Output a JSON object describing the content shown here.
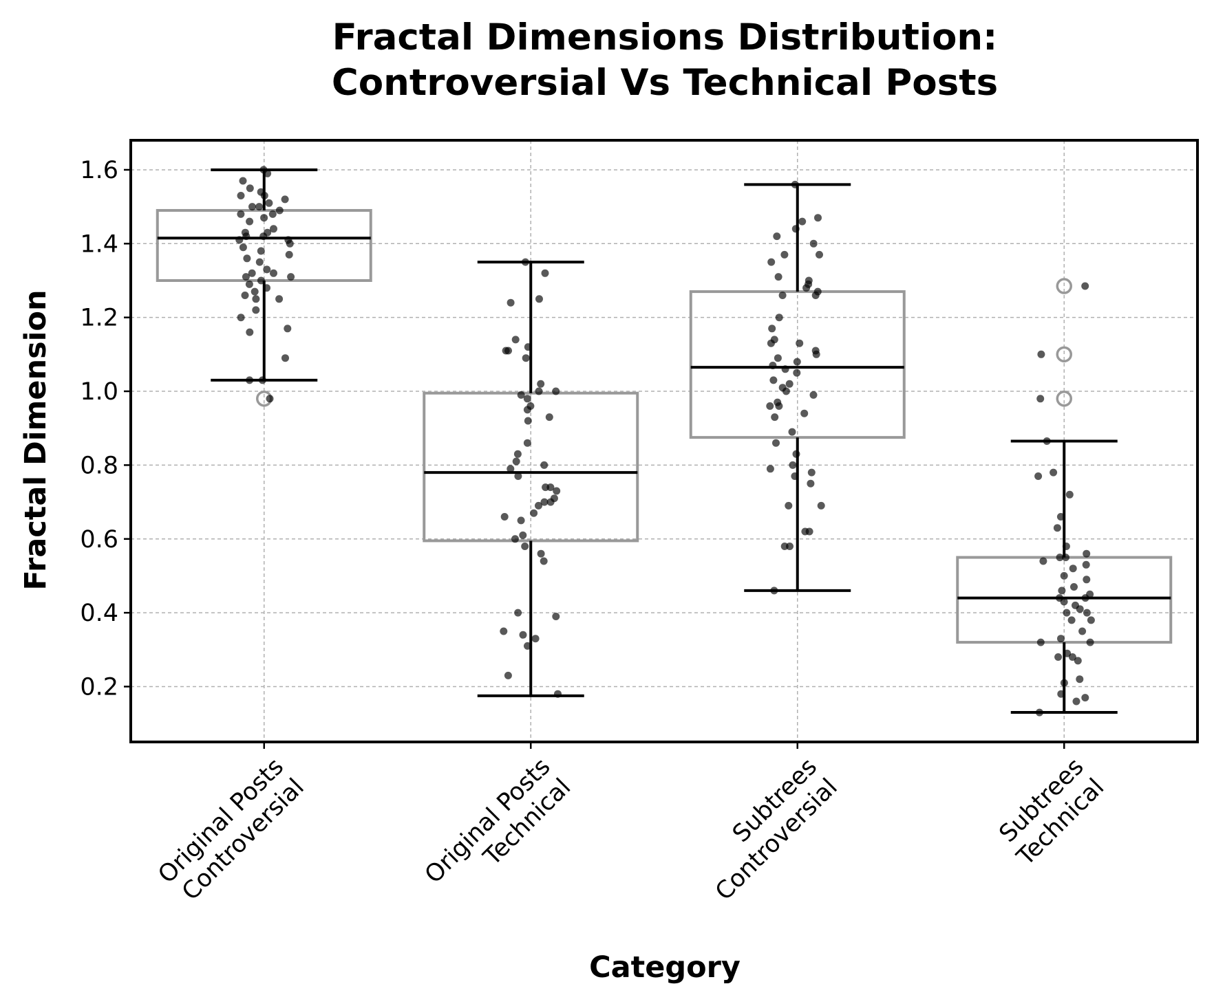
{
  "chart_data": {
    "type": "box",
    "title_lines": [
      "Fractal Dimensions Distribution:",
      "Controversial Vs Technical Posts"
    ],
    "xlabel": "Category",
    "ylabel": "Fractal Dimension",
    "ylim": [
      0.05,
      1.68
    ],
    "yticks": [
      0.2,
      0.4,
      0.6,
      0.8,
      1.0,
      1.2,
      1.4,
      1.6
    ],
    "ytick_labels": [
      "0.2",
      "0.4",
      "0.6",
      "0.8",
      "1.0",
      "1.2",
      "1.4",
      "1.6"
    ],
    "grid": true,
    "categories": [
      [
        "Original Posts",
        "Controversial"
      ],
      [
        "Original Posts",
        "Technical"
      ],
      [
        "Subtrees",
        "Controversial"
      ],
      [
        "Subtrees",
        "Technical"
      ]
    ],
    "colors": {
      "box_edge": "#999999",
      "median": "#000000",
      "whisker": "#000000",
      "points": "#000000",
      "outlier_edge": "#999999",
      "grid": "#b0b0b0"
    },
    "boxes": [
      {
        "q1": 1.3,
        "median": 1.415,
        "q3": 1.49,
        "whisker_low": 1.03,
        "whisker_high": 1.6,
        "outliers": [
          0.98
        ]
      },
      {
        "q1": 0.595,
        "median": 0.78,
        "q3": 0.995,
        "whisker_low": 0.175,
        "whisker_high": 1.35,
        "outliers": []
      },
      {
        "q1": 0.875,
        "median": 1.065,
        "q3": 1.27,
        "whisker_low": 0.46,
        "whisker_high": 1.56,
        "outliers": []
      },
      {
        "q1": 0.32,
        "median": 0.44,
        "q3": 0.55,
        "whisker_low": 0.13,
        "whisker_high": 0.865,
        "outliers": [
          1.285,
          1.1,
          0.98
        ]
      }
    ],
    "points": [
      [
        1.6,
        1.59,
        1.57,
        1.55,
        1.54,
        1.53,
        1.53,
        1.52,
        1.51,
        1.5,
        1.5,
        1.49,
        1.48,
        1.48,
        1.47,
        1.46,
        1.44,
        1.43,
        1.43,
        1.42,
        1.42,
        1.41,
        1.41,
        1.4,
        1.39,
        1.38,
        1.37,
        1.36,
        1.35,
        1.33,
        1.32,
        1.32,
        1.31,
        1.31,
        1.3,
        1.29,
        1.28,
        1.27,
        1.26,
        1.25,
        1.25,
        1.22,
        1.2,
        1.17,
        1.16,
        1.09,
        1.03,
        1.03,
        0.98
      ],
      [
        1.35,
        1.32,
        1.25,
        1.24,
        1.14,
        1.12,
        1.11,
        1.11,
        1.09,
        1.02,
        1.0,
        1.0,
        0.99,
        0.98,
        0.96,
        0.95,
        0.93,
        0.92,
        0.86,
        0.83,
        0.81,
        0.8,
        0.79,
        0.77,
        0.74,
        0.74,
        0.73,
        0.71,
        0.7,
        0.7,
        0.69,
        0.67,
        0.66,
        0.65,
        0.61,
        0.6,
        0.58,
        0.56,
        0.54,
        0.4,
        0.39,
        0.35,
        0.34,
        0.33,
        0.31,
        0.23,
        0.18
      ],
      [
        1.56,
        1.47,
        1.46,
        1.44,
        1.42,
        1.4,
        1.37,
        1.37,
        1.35,
        1.31,
        1.3,
        1.29,
        1.28,
        1.27,
        1.26,
        1.26,
        1.2,
        1.17,
        1.14,
        1.13,
        1.13,
        1.11,
        1.1,
        1.09,
        1.08,
        1.07,
        1.06,
        1.05,
        1.03,
        1.02,
        1.01,
        1.0,
        0.99,
        0.97,
        0.96,
        0.96,
        0.94,
        0.93,
        0.89,
        0.86,
        0.83,
        0.8,
        0.79,
        0.78,
        0.77,
        0.75,
        0.69,
        0.69,
        0.62,
        0.62,
        0.58,
        0.58,
        0.46
      ],
      [
        1.285,
        1.1,
        0.98,
        0.865,
        0.78,
        0.77,
        0.72,
        0.66,
        0.63,
        0.58,
        0.56,
        0.55,
        0.55,
        0.54,
        0.53,
        0.52,
        0.5,
        0.49,
        0.47,
        0.46,
        0.45,
        0.44,
        0.44,
        0.43,
        0.42,
        0.41,
        0.4,
        0.4,
        0.38,
        0.38,
        0.35,
        0.33,
        0.32,
        0.32,
        0.29,
        0.28,
        0.28,
        0.27,
        0.22,
        0.21,
        0.18,
        0.17,
        0.16,
        0.13
      ]
    ]
  }
}
